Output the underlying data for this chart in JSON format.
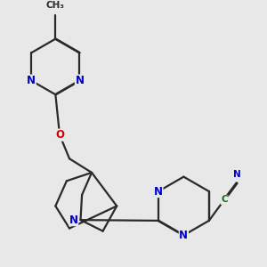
{
  "bg_color": "#e8e8e8",
  "bond_color": "#2a2a2a",
  "bond_width": 1.6,
  "dbo": 0.008,
  "atom_colors": {
    "N": "#0000cc",
    "O": "#cc0000",
    "C": "#1a6a1a"
  },
  "font_size": 8.5,
  "figsize": [
    3.0,
    3.0
  ],
  "dpi": 100
}
